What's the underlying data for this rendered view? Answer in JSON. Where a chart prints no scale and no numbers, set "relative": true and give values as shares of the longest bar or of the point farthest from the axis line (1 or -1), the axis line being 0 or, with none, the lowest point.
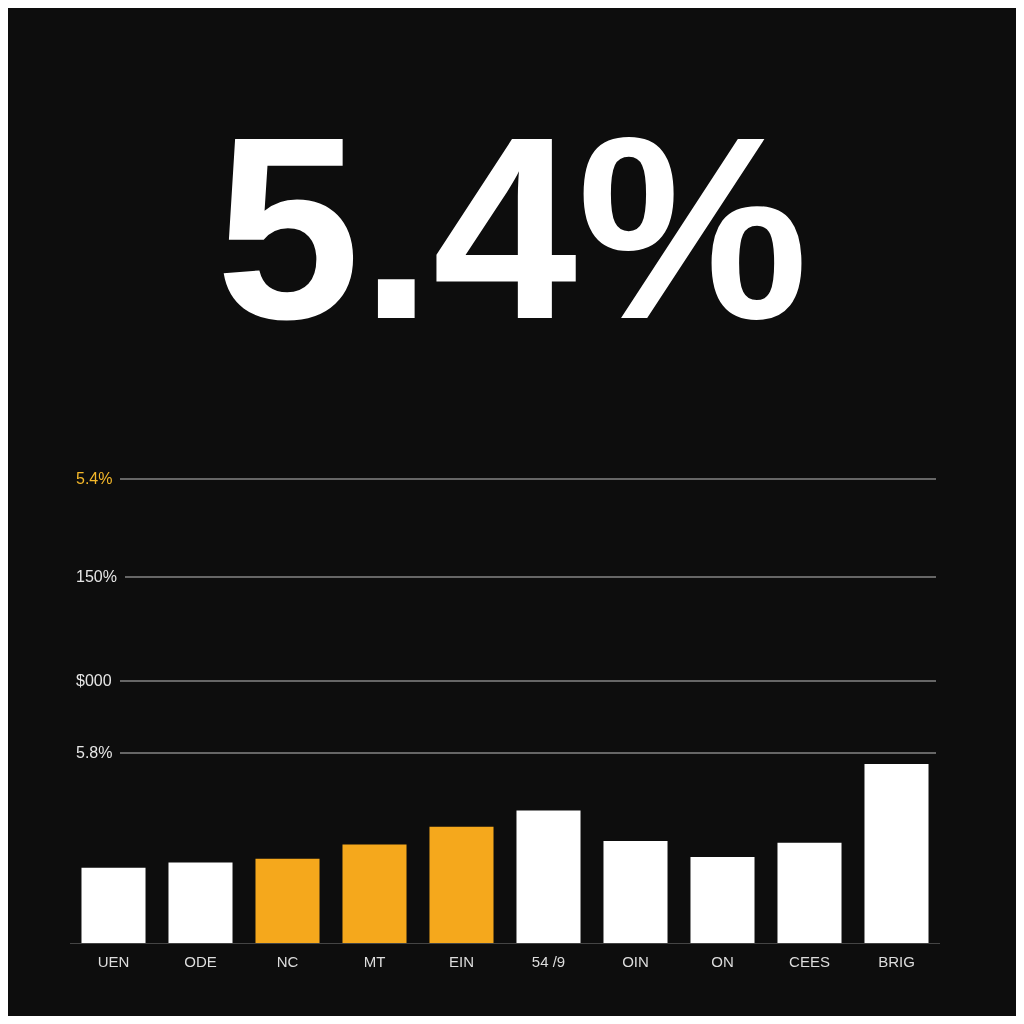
{
  "chart_data": {
    "type": "bar",
    "title": "5.4%",
    "categories": [
      "UEN",
      "ODE",
      "NC",
      "MT",
      "EIN",
      "54 /9",
      "OIN",
      "ON",
      "CEES",
      "BRIG"
    ],
    "values": [
      0.42,
      0.45,
      0.47,
      0.55,
      0.65,
      0.74,
      0.57,
      0.48,
      0.56,
      1
    ],
    "colors": [
      "#ffffff",
      "#ffffff",
      "#f5a81c",
      "#f5a81c",
      "#f5a81c",
      "#ffffff",
      "#ffffff",
      "#ffffff",
      "#ffffff",
      "#ffffff"
    ],
    "relative": true,
    "annotations": [
      "5.4%",
      "150%",
      "$000",
      "5.8%"
    ],
    "legend": false,
    "grid": false
  }
}
